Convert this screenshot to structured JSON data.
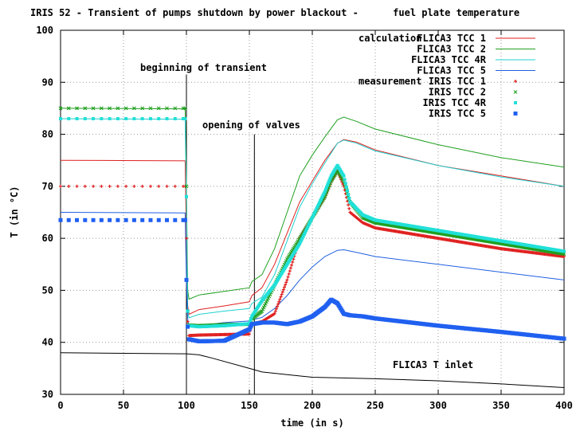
{
  "chart_data": {
    "type": "line",
    "title": "IRIS 52 - Transient of pumps shutdown by power blackout -      fuel plate temperature",
    "xlabel": "time (in s)",
    "ylabel": "T (in °C)",
    "xlim": [
      0,
      400
    ],
    "ylim": [
      30,
      100
    ],
    "xticks": [
      "0",
      "50",
      "100",
      "150",
      "200",
      "250",
      "300",
      "350",
      "400"
    ],
    "yticks": [
      "30",
      "40",
      "50",
      "60",
      "70",
      "80",
      "90",
      "100"
    ],
    "grid": true,
    "legend_position": "top-right",
    "legend_group_calc": "calculation",
    "legend_group_meas": "measurement",
    "annotations": {
      "beginning": "beginning of transient",
      "valves": "opening of valves",
      "inlet": "FLICA3 T inlet"
    },
    "markers": {
      "beginning_x": 100,
      "valves_x": 154
    },
    "series": [
      {
        "name": "FLICA3 TCC  1",
        "kind": "line",
        "color": "#e02020",
        "x": [
          0,
          99,
          100,
          101,
          102,
          110,
          130,
          150,
          152,
          160,
          170,
          180,
          190,
          200,
          210,
          220,
          225,
          235,
          250,
          300,
          350,
          400
        ],
        "y": [
          75,
          74.9,
          60,
          47,
          45.4,
          46.3,
          47,
          47.8,
          49,
          50.5,
          55,
          61,
          67,
          71,
          75,
          78.3,
          79,
          78.5,
          77,
          74,
          72,
          70
        ]
      },
      {
        "name": "FLICA3 TCC  2",
        "kind": "line",
        "color": "#20a020",
        "x": [
          0,
          99,
          100,
          101,
          102,
          110,
          130,
          150,
          152,
          160,
          170,
          180,
          190,
          200,
          210,
          220,
          225,
          235,
          250,
          300,
          350,
          400
        ],
        "y": [
          85,
          84.9,
          70,
          50,
          48.3,
          49.1,
          49.8,
          50.5,
          51.7,
          53,
          58,
          65,
          72,
          76,
          79.5,
          82.8,
          83.3,
          82.5,
          81,
          78,
          75.5,
          73.7
        ]
      },
      {
        "name": "FLICA3 TCC 4R",
        "kind": "line",
        "color": "#20d0d0",
        "x": [
          0,
          99,
          100,
          101,
          102,
          110,
          130,
          150,
          152,
          160,
          170,
          180,
          190,
          200,
          210,
          220,
          225,
          235,
          250,
          300,
          350,
          400
        ],
        "y": [
          83,
          82.9,
          68,
          46,
          44.7,
          45.4,
          46,
          46.5,
          47.5,
          48.7,
          53,
          59.5,
          66,
          70.5,
          74.5,
          78.3,
          78.9,
          78.3,
          76.8,
          74,
          71.8,
          70
        ]
      },
      {
        "name": "FLICA3 TCC  5",
        "kind": "line",
        "color": "#2060e0",
        "x": [
          0,
          99,
          100,
          101,
          102,
          110,
          130,
          150,
          152,
          160,
          170,
          180,
          190,
          200,
          210,
          220,
          225,
          235,
          250,
          300,
          350,
          400
        ],
        "y": [
          65,
          64.9,
          52,
          44.5,
          43,
          43.2,
          43.8,
          44.1,
          44.3,
          44.8,
          46.5,
          49,
          52,
          54.5,
          56.5,
          57.7,
          57.8,
          57.3,
          56.5,
          55,
          53.5,
          52
        ]
      },
      {
        "name": "IRIS TCC  1",
        "kind": "plus",
        "color": "#e02020",
        "x": [
          0,
          99,
          100,
          101,
          102,
          110,
          130,
          150,
          152,
          160,
          170,
          180,
          190,
          200,
          210,
          215,
          220,
          225,
          230,
          240,
          250,
          300,
          350,
          400
        ],
        "y": [
          70,
          70,
          60,
          44,
          41.3,
          41.4,
          41.5,
          41.6,
          43.5,
          44,
          45.5,
          52,
          60,
          64,
          68,
          71,
          73,
          70,
          65,
          63,
          62,
          60,
          58,
          56.5
        ]
      },
      {
        "name": "IRIS TCC  2",
        "kind": "cross",
        "color": "#20a020",
        "x": [
          0,
          99,
          100,
          101,
          102,
          110,
          130,
          150,
          152,
          160,
          170,
          180,
          190,
          200,
          210,
          215,
          220,
          225,
          230,
          240,
          250,
          300,
          350,
          400
        ],
        "y": [
          85,
          85,
          70,
          46,
          43.3,
          43.2,
          43.4,
          43.5,
          44.5,
          46,
          51,
          56,
          60,
          64,
          68,
          71,
          73,
          71,
          67,
          64,
          63,
          61,
          59,
          57
        ]
      },
      {
        "name": "IRIS TCC 4R",
        "kind": "square",
        "color": "#20e0d8",
        "x": [
          0,
          99,
          100,
          101,
          102,
          110,
          130,
          150,
          152,
          160,
          170,
          180,
          190,
          200,
          210,
          215,
          220,
          225,
          230,
          240,
          250,
          300,
          350,
          400
        ],
        "y": [
          83,
          83,
          68,
          46,
          43.2,
          43,
          43.2,
          43.6,
          45,
          48,
          51,
          55,
          59,
          64,
          69,
          72,
          74,
          72,
          67,
          64.5,
          63.5,
          61.5,
          59.5,
          57.5
        ]
      },
      {
        "name": "IRIS TCC  5",
        "kind": "bigsquare",
        "color": "#2060f0",
        "x": [
          0,
          99,
          100,
          101,
          102,
          110,
          130,
          150,
          152,
          160,
          170,
          180,
          190,
          200,
          210,
          215,
          220,
          225,
          230,
          240,
          250,
          300,
          350,
          400
        ],
        "y": [
          63.5,
          63.5,
          52,
          43,
          40.6,
          40.2,
          40.3,
          42.5,
          43.5,
          43.8,
          43.8,
          43.5,
          44,
          45,
          46.8,
          48.2,
          47.5,
          45.5,
          45.2,
          45,
          44.6,
          43.2,
          42,
          40.7
        ]
      },
      {
        "name": "FLICA3 T inlet",
        "kind": "line",
        "color": "#000000",
        "x": [
          0,
          100,
          110,
          120,
          150,
          160,
          180,
          200,
          250,
          300,
          350,
          400
        ],
        "y": [
          38,
          37.8,
          37.6,
          37,
          35,
          34.3,
          33.8,
          33.3,
          33,
          32.6,
          32,
          31.3
        ]
      }
    ]
  }
}
